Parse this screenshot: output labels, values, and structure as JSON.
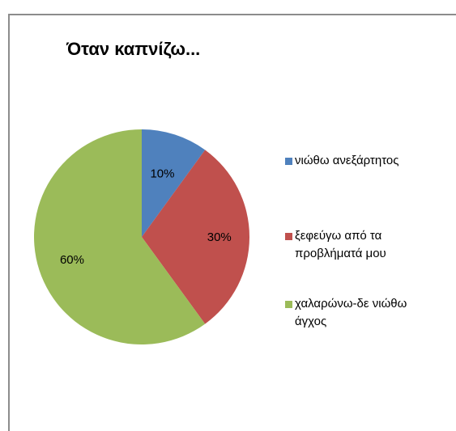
{
  "chart_data": {
    "type": "pie",
    "title": "Όταν καπνίζω...",
    "categories": [
      "νιώθω ανεξάρτητος",
      "ξεφεύγω από τα προβλήματά μου",
      "χαλαρώνω-δε νιώθω άγχος"
    ],
    "values": [
      10,
      30,
      60
    ],
    "data_labels": [
      "10%",
      "30%",
      "60%"
    ],
    "colors": [
      "#4f81bd",
      "#c0504d",
      "#9bbb59"
    ],
    "legend": {
      "position": "right",
      "lines": [
        [
          "νιώθω ανεξάρτητος"
        ],
        [
          "ξεφεύγω από τα",
          "προβλήματά μου"
        ],
        [
          "χαλαρώνω-δε νιώθω",
          "άγχος"
        ]
      ]
    }
  }
}
